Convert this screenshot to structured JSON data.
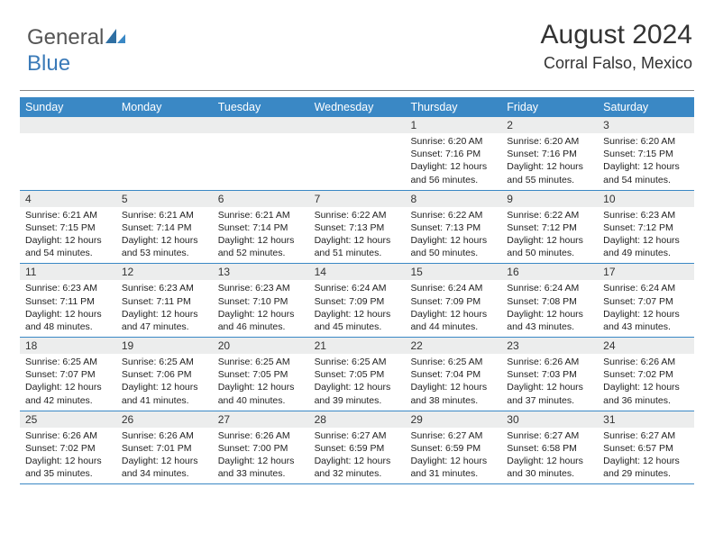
{
  "logo": {
    "part1": "General",
    "part2": "Blue"
  },
  "header": {
    "month_title": "August 2024",
    "location": "Corral Falso, Mexico"
  },
  "colors": {
    "brand_blue": "#3a88c5",
    "header_band": "#3a88c5",
    "daynum_bg": "#eceded",
    "text": "#222222",
    "rule": "#888888"
  },
  "day_names": [
    "Sunday",
    "Monday",
    "Tuesday",
    "Wednesday",
    "Thursday",
    "Friday",
    "Saturday"
  ],
  "weeks": [
    [
      null,
      null,
      null,
      null,
      {
        "n": "1",
        "sr": "Sunrise: 6:20 AM",
        "ss": "Sunset: 7:16 PM",
        "dl": "Daylight: 12 hours and 56 minutes."
      },
      {
        "n": "2",
        "sr": "Sunrise: 6:20 AM",
        "ss": "Sunset: 7:16 PM",
        "dl": "Daylight: 12 hours and 55 minutes."
      },
      {
        "n": "3",
        "sr": "Sunrise: 6:20 AM",
        "ss": "Sunset: 7:15 PM",
        "dl": "Daylight: 12 hours and 54 minutes."
      }
    ],
    [
      {
        "n": "4",
        "sr": "Sunrise: 6:21 AM",
        "ss": "Sunset: 7:15 PM",
        "dl": "Daylight: 12 hours and 54 minutes."
      },
      {
        "n": "5",
        "sr": "Sunrise: 6:21 AM",
        "ss": "Sunset: 7:14 PM",
        "dl": "Daylight: 12 hours and 53 minutes."
      },
      {
        "n": "6",
        "sr": "Sunrise: 6:21 AM",
        "ss": "Sunset: 7:14 PM",
        "dl": "Daylight: 12 hours and 52 minutes."
      },
      {
        "n": "7",
        "sr": "Sunrise: 6:22 AM",
        "ss": "Sunset: 7:13 PM",
        "dl": "Daylight: 12 hours and 51 minutes."
      },
      {
        "n": "8",
        "sr": "Sunrise: 6:22 AM",
        "ss": "Sunset: 7:13 PM",
        "dl": "Daylight: 12 hours and 50 minutes."
      },
      {
        "n": "9",
        "sr": "Sunrise: 6:22 AM",
        "ss": "Sunset: 7:12 PM",
        "dl": "Daylight: 12 hours and 50 minutes."
      },
      {
        "n": "10",
        "sr": "Sunrise: 6:23 AM",
        "ss": "Sunset: 7:12 PM",
        "dl": "Daylight: 12 hours and 49 minutes."
      }
    ],
    [
      {
        "n": "11",
        "sr": "Sunrise: 6:23 AM",
        "ss": "Sunset: 7:11 PM",
        "dl": "Daylight: 12 hours and 48 minutes."
      },
      {
        "n": "12",
        "sr": "Sunrise: 6:23 AM",
        "ss": "Sunset: 7:11 PM",
        "dl": "Daylight: 12 hours and 47 minutes."
      },
      {
        "n": "13",
        "sr": "Sunrise: 6:23 AM",
        "ss": "Sunset: 7:10 PM",
        "dl": "Daylight: 12 hours and 46 minutes."
      },
      {
        "n": "14",
        "sr": "Sunrise: 6:24 AM",
        "ss": "Sunset: 7:09 PM",
        "dl": "Daylight: 12 hours and 45 minutes."
      },
      {
        "n": "15",
        "sr": "Sunrise: 6:24 AM",
        "ss": "Sunset: 7:09 PM",
        "dl": "Daylight: 12 hours and 44 minutes."
      },
      {
        "n": "16",
        "sr": "Sunrise: 6:24 AM",
        "ss": "Sunset: 7:08 PM",
        "dl": "Daylight: 12 hours and 43 minutes."
      },
      {
        "n": "17",
        "sr": "Sunrise: 6:24 AM",
        "ss": "Sunset: 7:07 PM",
        "dl": "Daylight: 12 hours and 43 minutes."
      }
    ],
    [
      {
        "n": "18",
        "sr": "Sunrise: 6:25 AM",
        "ss": "Sunset: 7:07 PM",
        "dl": "Daylight: 12 hours and 42 minutes."
      },
      {
        "n": "19",
        "sr": "Sunrise: 6:25 AM",
        "ss": "Sunset: 7:06 PM",
        "dl": "Daylight: 12 hours and 41 minutes."
      },
      {
        "n": "20",
        "sr": "Sunrise: 6:25 AM",
        "ss": "Sunset: 7:05 PM",
        "dl": "Daylight: 12 hours and 40 minutes."
      },
      {
        "n": "21",
        "sr": "Sunrise: 6:25 AM",
        "ss": "Sunset: 7:05 PM",
        "dl": "Daylight: 12 hours and 39 minutes."
      },
      {
        "n": "22",
        "sr": "Sunrise: 6:25 AM",
        "ss": "Sunset: 7:04 PM",
        "dl": "Daylight: 12 hours and 38 minutes."
      },
      {
        "n": "23",
        "sr": "Sunrise: 6:26 AM",
        "ss": "Sunset: 7:03 PM",
        "dl": "Daylight: 12 hours and 37 minutes."
      },
      {
        "n": "24",
        "sr": "Sunrise: 6:26 AM",
        "ss": "Sunset: 7:02 PM",
        "dl": "Daylight: 12 hours and 36 minutes."
      }
    ],
    [
      {
        "n": "25",
        "sr": "Sunrise: 6:26 AM",
        "ss": "Sunset: 7:02 PM",
        "dl": "Daylight: 12 hours and 35 minutes."
      },
      {
        "n": "26",
        "sr": "Sunrise: 6:26 AM",
        "ss": "Sunset: 7:01 PM",
        "dl": "Daylight: 12 hours and 34 minutes."
      },
      {
        "n": "27",
        "sr": "Sunrise: 6:26 AM",
        "ss": "Sunset: 7:00 PM",
        "dl": "Daylight: 12 hours and 33 minutes."
      },
      {
        "n": "28",
        "sr": "Sunrise: 6:27 AM",
        "ss": "Sunset: 6:59 PM",
        "dl": "Daylight: 12 hours and 32 minutes."
      },
      {
        "n": "29",
        "sr": "Sunrise: 6:27 AM",
        "ss": "Sunset: 6:59 PM",
        "dl": "Daylight: 12 hours and 31 minutes."
      },
      {
        "n": "30",
        "sr": "Sunrise: 6:27 AM",
        "ss": "Sunset: 6:58 PM",
        "dl": "Daylight: 12 hours and 30 minutes."
      },
      {
        "n": "31",
        "sr": "Sunrise: 6:27 AM",
        "ss": "Sunset: 6:57 PM",
        "dl": "Daylight: 12 hours and 29 minutes."
      }
    ]
  ]
}
